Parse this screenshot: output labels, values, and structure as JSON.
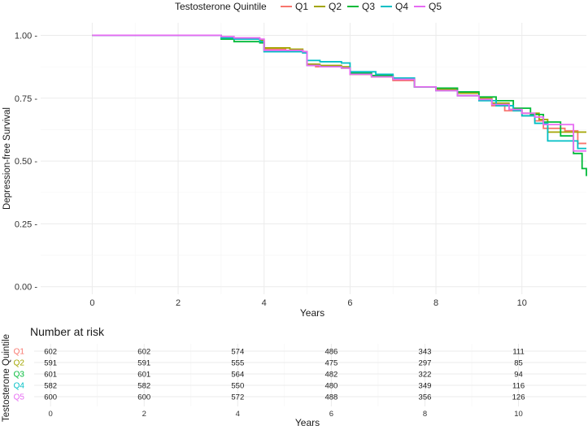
{
  "chart_data": [
    {
      "type": "line",
      "subtype": "kaplan-meier-step",
      "xlabel": "Years",
      "ylabel": "Depression-free Survival",
      "xlim": [
        -1.2,
        11.5
      ],
      "ylim": [
        -0.03,
        1.05
      ],
      "x_ticks": [
        0,
        2,
        4,
        6,
        8,
        10
      ],
      "x_tick_labels": [
        "0",
        "2",
        "4",
        "6",
        "8",
        "10"
      ],
      "y_ticks": [
        0,
        0.25,
        0.5,
        0.75,
        1.0
      ],
      "y_tick_labels": [
        "0.00 -",
        "0.25 -",
        "0.50 -",
        "0.75 -",
        "1.00 -"
      ],
      "grid": true,
      "legend_title": "Testosterone Quintile",
      "legend_position": "top",
      "series": [
        {
          "name": "Q1",
          "color": "#F8766D",
          "x": [
            0,
            2.9,
            3.0,
            3.2,
            3.9,
            4.0,
            4.5,
            4.9,
            5.0,
            5.2,
            5.8,
            6.0,
            6.5,
            7.0,
            7.5,
            8.0,
            8.5,
            9.0,
            9.3,
            9.6,
            10.0,
            10.3,
            10.5,
            11.0,
            11.3,
            11.5
          ],
          "y": [
            1.0,
            1.0,
            0.99,
            0.985,
            0.98,
            0.945,
            0.94,
            0.93,
            0.885,
            0.875,
            0.87,
            0.845,
            0.835,
            0.82,
            0.795,
            0.78,
            0.76,
            0.745,
            0.72,
            0.7,
            0.68,
            0.66,
            0.63,
            0.62,
            0.57,
            0.57
          ]
        },
        {
          "name": "Q2",
          "color": "#A3A500",
          "x": [
            0,
            2.9,
            3.0,
            3.3,
            3.9,
            4.0,
            4.6,
            4.9,
            5.0,
            5.3,
            5.8,
            6.0,
            6.5,
            7.0,
            7.5,
            8.0,
            8.5,
            9.0,
            9.3,
            9.7,
            10.0,
            10.4,
            10.6,
            11.5
          ],
          "y": [
            1.0,
            1.0,
            0.99,
            0.985,
            0.98,
            0.95,
            0.945,
            0.935,
            0.885,
            0.88,
            0.875,
            0.845,
            0.835,
            0.825,
            0.795,
            0.785,
            0.77,
            0.75,
            0.73,
            0.705,
            0.69,
            0.665,
            0.615,
            0.615
          ]
        },
        {
          "name": "Q3",
          "color": "#00BA38",
          "x": [
            0,
            2.9,
            3.0,
            3.3,
            3.9,
            4.0,
            4.5,
            4.9,
            5.0,
            5.3,
            5.8,
            6.0,
            6.5,
            7.0,
            7.5,
            8.0,
            8.5,
            9.0,
            9.4,
            9.8,
            10.2,
            10.5,
            10.9,
            11.2,
            11.4,
            11.5
          ],
          "y": [
            1.0,
            1.0,
            0.985,
            0.975,
            0.97,
            0.935,
            0.935,
            0.93,
            0.88,
            0.875,
            0.87,
            0.85,
            0.84,
            0.825,
            0.795,
            0.79,
            0.775,
            0.755,
            0.74,
            0.71,
            0.685,
            0.655,
            0.6,
            0.53,
            0.47,
            0.44
          ]
        },
        {
          "name": "Q4",
          "color": "#00BFC4",
          "x": [
            0,
            2.9,
            3.0,
            3.3,
            3.9,
            4.0,
            4.5,
            4.9,
            5.0,
            5.3,
            5.8,
            6.0,
            6.6,
            7.0,
            7.5,
            8.0,
            8.5,
            9.0,
            9.4,
            9.8,
            10.0,
            10.3,
            10.6,
            11.0,
            11.3,
            11.5
          ],
          "y": [
            1.0,
            1.0,
            0.99,
            0.985,
            0.975,
            0.935,
            0.935,
            0.93,
            0.9,
            0.895,
            0.89,
            0.855,
            0.845,
            0.83,
            0.795,
            0.78,
            0.76,
            0.74,
            0.72,
            0.7,
            0.68,
            0.65,
            0.58,
            0.58,
            0.55,
            0.55
          ]
        },
        {
          "name": "Q5",
          "color": "#E76BF3",
          "x": [
            0,
            2.9,
            3.0,
            3.3,
            3.9,
            4.0,
            4.5,
            4.9,
            5.0,
            5.3,
            5.8,
            6.0,
            6.5,
            7.0,
            7.5,
            8.0,
            8.5,
            9.0,
            9.3,
            9.7,
            10.0,
            10.3,
            10.5,
            10.9,
            11.2,
            11.5
          ],
          "y": [
            1.0,
            1.0,
            0.995,
            0.99,
            0.985,
            0.94,
            0.94,
            0.935,
            0.88,
            0.875,
            0.87,
            0.845,
            0.835,
            0.825,
            0.795,
            0.78,
            0.76,
            0.745,
            0.725,
            0.705,
            0.69,
            0.675,
            0.645,
            0.645,
            0.54,
            0.54
          ]
        }
      ]
    },
    {
      "type": "table",
      "title": "Number at risk",
      "xlabel": "Years",
      "ylabel": "Testosterone Quintile",
      "x_ticks": [
        0,
        2,
        4,
        6,
        8,
        10
      ],
      "x_tick_labels": [
        "0",
        "2",
        "4",
        "6",
        "8",
        "10"
      ],
      "rows": [
        {
          "label": "Q1",
          "color": "#F8766D",
          "values": [
            "602",
            "602",
            "574",
            "486",
            "343",
            "111"
          ]
        },
        {
          "label": "Q2",
          "color": "#A3A500",
          "values": [
            "591",
            "591",
            "555",
            "475",
            "297",
            "85"
          ]
        },
        {
          "label": "Q3",
          "color": "#00BA38",
          "values": [
            "601",
            "601",
            "564",
            "482",
            "322",
            "94"
          ]
        },
        {
          "label": "Q4",
          "color": "#00BFC4",
          "values": [
            "582",
            "582",
            "550",
            "480",
            "349",
            "116"
          ]
        },
        {
          "label": "Q5",
          "color": "#E76BF3",
          "values": [
            "600",
            "600",
            "572",
            "488",
            "356",
            "126"
          ]
        }
      ]
    }
  ]
}
